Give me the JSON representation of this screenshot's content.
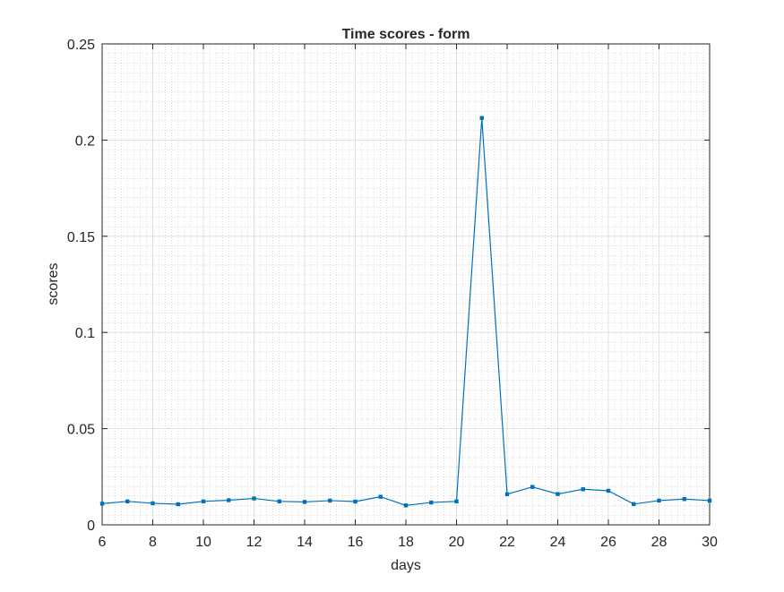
{
  "chart_data": {
    "type": "line",
    "title": "Time scores - form",
    "xlabel": "days",
    "ylabel": "scores",
    "xlim": [
      6,
      30
    ],
    "ylim": [
      0,
      0.25
    ],
    "x_ticks": [
      6,
      8,
      10,
      12,
      14,
      16,
      18,
      20,
      22,
      24,
      26,
      28,
      30
    ],
    "x_tick_labels": [
      "6",
      "8",
      "10",
      "12",
      "14",
      "16",
      "18",
      "20",
      "22",
      "24",
      "26",
      "28",
      "30"
    ],
    "y_ticks": [
      0,
      0.05,
      0.1,
      0.15,
      0.2,
      0.25
    ],
    "y_tick_labels": [
      "0",
      "0.05",
      "0.1",
      "0.15",
      "0.2",
      "0.25"
    ],
    "grid": "major and minor (dotted)",
    "series": [
      {
        "color": "#0072BD",
        "marker": "square",
        "x": [
          6,
          7,
          8,
          9,
          10,
          11,
          12,
          13,
          14,
          15,
          16,
          17,
          18,
          19,
          20,
          21,
          22,
          23,
          24,
          25,
          26,
          27,
          28,
          29,
          30
        ],
        "y": [
          0.011,
          0.0122,
          0.0112,
          0.0107,
          0.0122,
          0.0128,
          0.0137,
          0.0122,
          0.0119,
          0.0126,
          0.0121,
          0.0146,
          0.0101,
          0.0116,
          0.0122,
          0.2115,
          0.0159,
          0.0197,
          0.016,
          0.0185,
          0.0177,
          0.0108,
          0.0126,
          0.0134,
          0.0126
        ]
      }
    ]
  }
}
